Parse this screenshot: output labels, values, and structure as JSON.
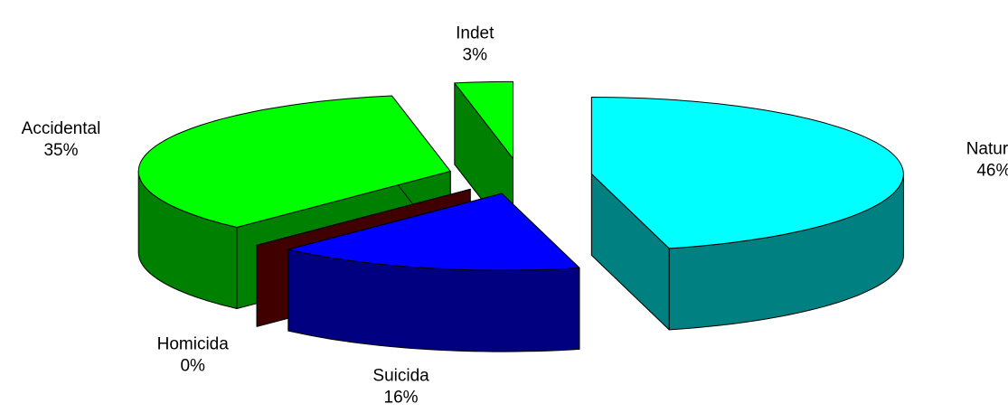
{
  "chart_data": {
    "type": "pie",
    "three_d": true,
    "exploded": true,
    "categories": [
      "Natural",
      "Suicida",
      "Homicida",
      "Accidental",
      "Indet"
    ],
    "values": [
      46,
      16,
      0,
      35,
      3
    ],
    "value_labels": [
      "46%",
      "16%",
      "0%",
      "35%",
      "3%"
    ],
    "colors": [
      "#00ffff",
      "#0000ff",
      "#800000",
      "#00ff00",
      "#00ff00"
    ]
  }
}
